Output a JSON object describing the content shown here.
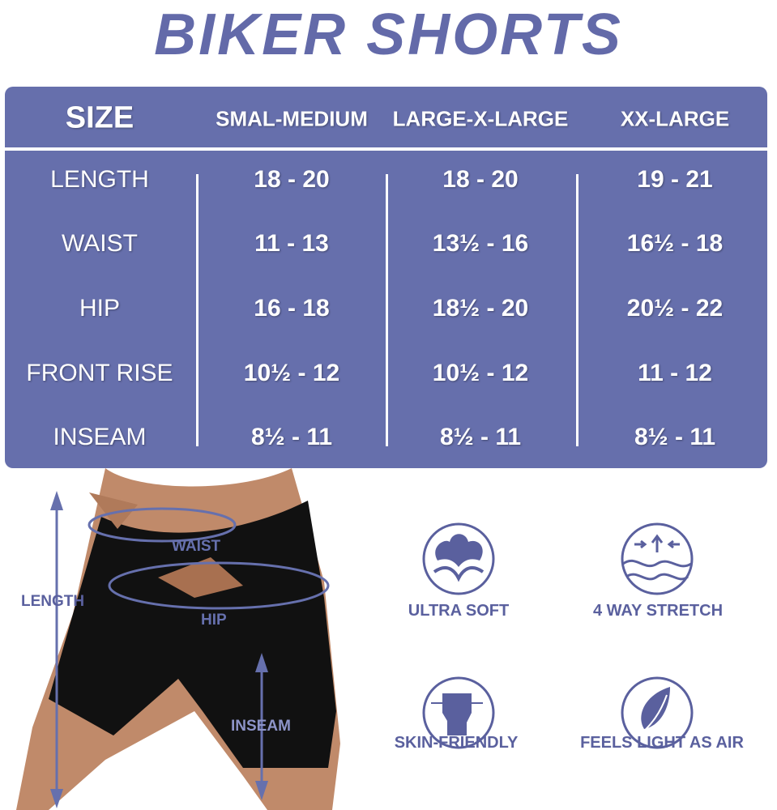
{
  "title": "BIKER SHORTS",
  "table": {
    "corner_header": "SIZE",
    "columns": [
      "SMAL-MEDIUM",
      "LARGE-X-LARGE",
      "XX-LARGE"
    ],
    "rows": [
      {
        "label": "LENGTH",
        "values": [
          "18 - 20",
          "18 - 20",
          "19 - 21"
        ]
      },
      {
        "label": "WAIST",
        "values": [
          "11 - 13",
          "13½ - 16",
          "16½ - 18"
        ]
      },
      {
        "label": "HIP",
        "values": [
          "16 - 18",
          "18½ - 20",
          "20½ - 22"
        ]
      },
      {
        "label": "FRONT RISE",
        "values": [
          "10½ - 12",
          "10½ - 12",
          "11 - 12"
        ]
      },
      {
        "label": "INSEAM",
        "values": [
          "8½ - 11",
          "8½ - 11",
          "8½ - 11"
        ]
      }
    ]
  },
  "diagram": {
    "waist": "WAIST",
    "hip": "HIP",
    "length": "LENGTH",
    "inseam": "INSEAM"
  },
  "features": [
    {
      "icon": "cotton-icon",
      "label": "ULTRA SOFT"
    },
    {
      "icon": "stretch-icon",
      "label": "4 WAY STRETCH"
    },
    {
      "icon": "fist-icon",
      "label": "SKIN-FRIENDLY"
    },
    {
      "icon": "feather-icon",
      "label": "FEELS LIGHT AS AIR"
    }
  ],
  "colors": {
    "accent": "#666fac",
    "text": "#5a609e"
  }
}
